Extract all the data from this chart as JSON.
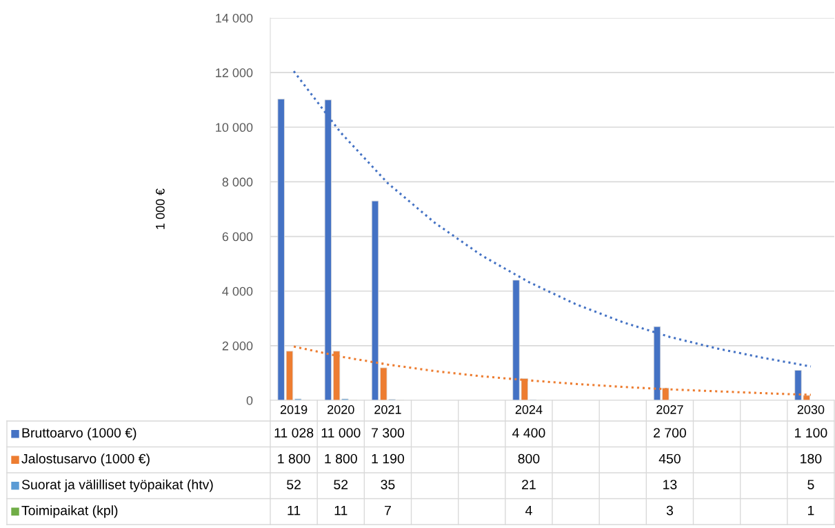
{
  "chart_data": {
    "type": "bar",
    "ylabel": "1 000 €",
    "categories": [
      "2019",
      "2020",
      "2021",
      null,
      null,
      "2024",
      null,
      null,
      "2027",
      null,
      null,
      "2030"
    ],
    "series": [
      {
        "name": "Bruttoarvo (1000 €)",
        "color": "#4472c4",
        "values": [
          11028,
          11000,
          7300,
          null,
          null,
          4400,
          null,
          null,
          2700,
          null,
          null,
          1100
        ],
        "value_labels": [
          "11 028",
          "11 000",
          "7 300",
          null,
          null,
          "4 400",
          null,
          null,
          "2 700",
          null,
          null,
          "1 100"
        ]
      },
      {
        "name": "Jalostusarvo (1000 €)",
        "color": "#ed7d31",
        "values": [
          1800,
          1800,
          1190,
          null,
          null,
          800,
          null,
          null,
          450,
          null,
          null,
          180
        ],
        "value_labels": [
          "1 800",
          "1 800",
          "1 190",
          null,
          null,
          "800",
          null,
          null,
          "450",
          null,
          null,
          "180"
        ]
      },
      {
        "name": "Suorat ja välilliset työpaikat (htv)",
        "color": "#5b9bd5",
        "values": [
          52,
          52,
          35,
          null,
          null,
          21,
          null,
          null,
          13,
          null,
          null,
          5
        ],
        "value_labels": [
          "52",
          "52",
          "35",
          null,
          null,
          "21",
          null,
          null,
          "13",
          null,
          null,
          "5"
        ]
      },
      {
        "name": "Toimipaikat (kpl)",
        "color": "#70ad47",
        "values": [
          11,
          11,
          7,
          null,
          null,
          4,
          null,
          null,
          3,
          null,
          null,
          1
        ],
        "value_labels": [
          "11",
          "11",
          "7",
          null,
          null,
          "4",
          null,
          null,
          "3",
          null,
          null,
          "1"
        ]
      },
      {
        "type": "line",
        "color": "#4472c4",
        "line_style": "dotted",
        "values": [
          12050,
          9800,
          7950,
          6500,
          5300,
          4330,
          3520,
          2860,
          2320,
          1900,
          1550,
          1240
        ]
      },
      {
        "type": "line",
        "color": "#ed7d31",
        "line_style": "dotted",
        "values": [
          1970,
          1600,
          1310,
          1070,
          880,
          730,
          600,
          490,
          400,
          330,
          260,
          200
        ]
      }
    ],
    "ylim": [
      0,
      14000
    ],
    "yticks": [
      0,
      {
        "value": 2000,
        "label": "2 000"
      },
      {
        "value": 4000,
        "label": "4 000"
      },
      {
        "value": 6000,
        "label": "6 000"
      },
      {
        "value": 8000,
        "label": "8 000"
      },
      {
        "value": 10000,
        "label": "10 000"
      },
      {
        "value": 12000,
        "label": "12 000"
      },
      {
        "value": 14000,
        "label": "14 000"
      }
    ],
    "grid": "y",
    "legend": "bottom"
  }
}
